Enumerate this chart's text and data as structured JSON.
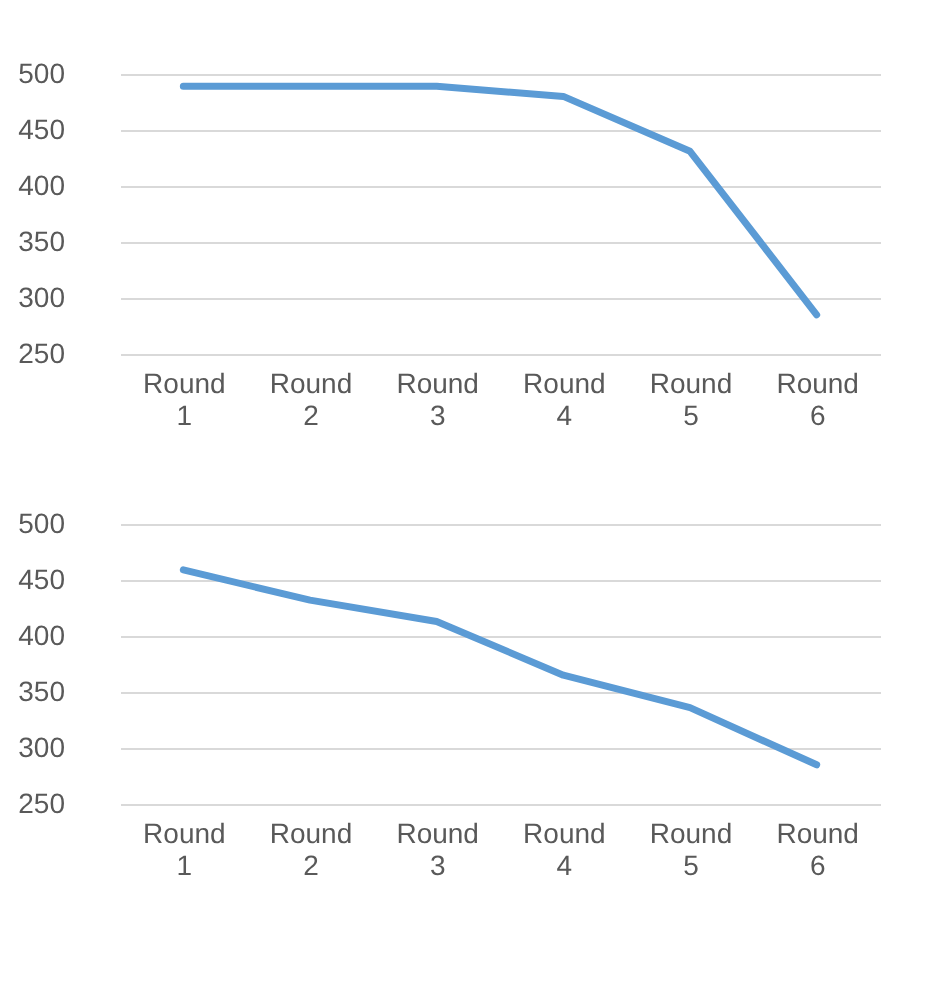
{
  "chart_data": [
    {
      "type": "line",
      "categories": [
        "Round 1",
        "Round 2",
        "Round 3",
        "Round 4",
        "Round 5",
        "Round 6"
      ],
      "series": [
        {
          "color": "#5b9bd5",
          "values": [
            489,
            489,
            489,
            480,
            431,
            285
          ]
        }
      ],
      "ylim": [
        250,
        500
      ],
      "yticks": [
        250,
        300,
        350,
        400,
        450,
        500
      ],
      "grid": "y",
      "legend": false
    },
    {
      "type": "line",
      "categories": [
        "Round 1",
        "Round 2",
        "Round 3",
        "Round 4",
        "Round 5",
        "Round 6"
      ],
      "series": [
        {
          "color": "#5b9bd5",
          "values": [
            459,
            432,
            413,
            365,
            336,
            285
          ]
        }
      ],
      "ylim": [
        250,
        500
      ],
      "yticks": [
        250,
        300,
        350,
        400,
        450,
        500
      ],
      "grid": "y",
      "legend": false
    }
  ]
}
